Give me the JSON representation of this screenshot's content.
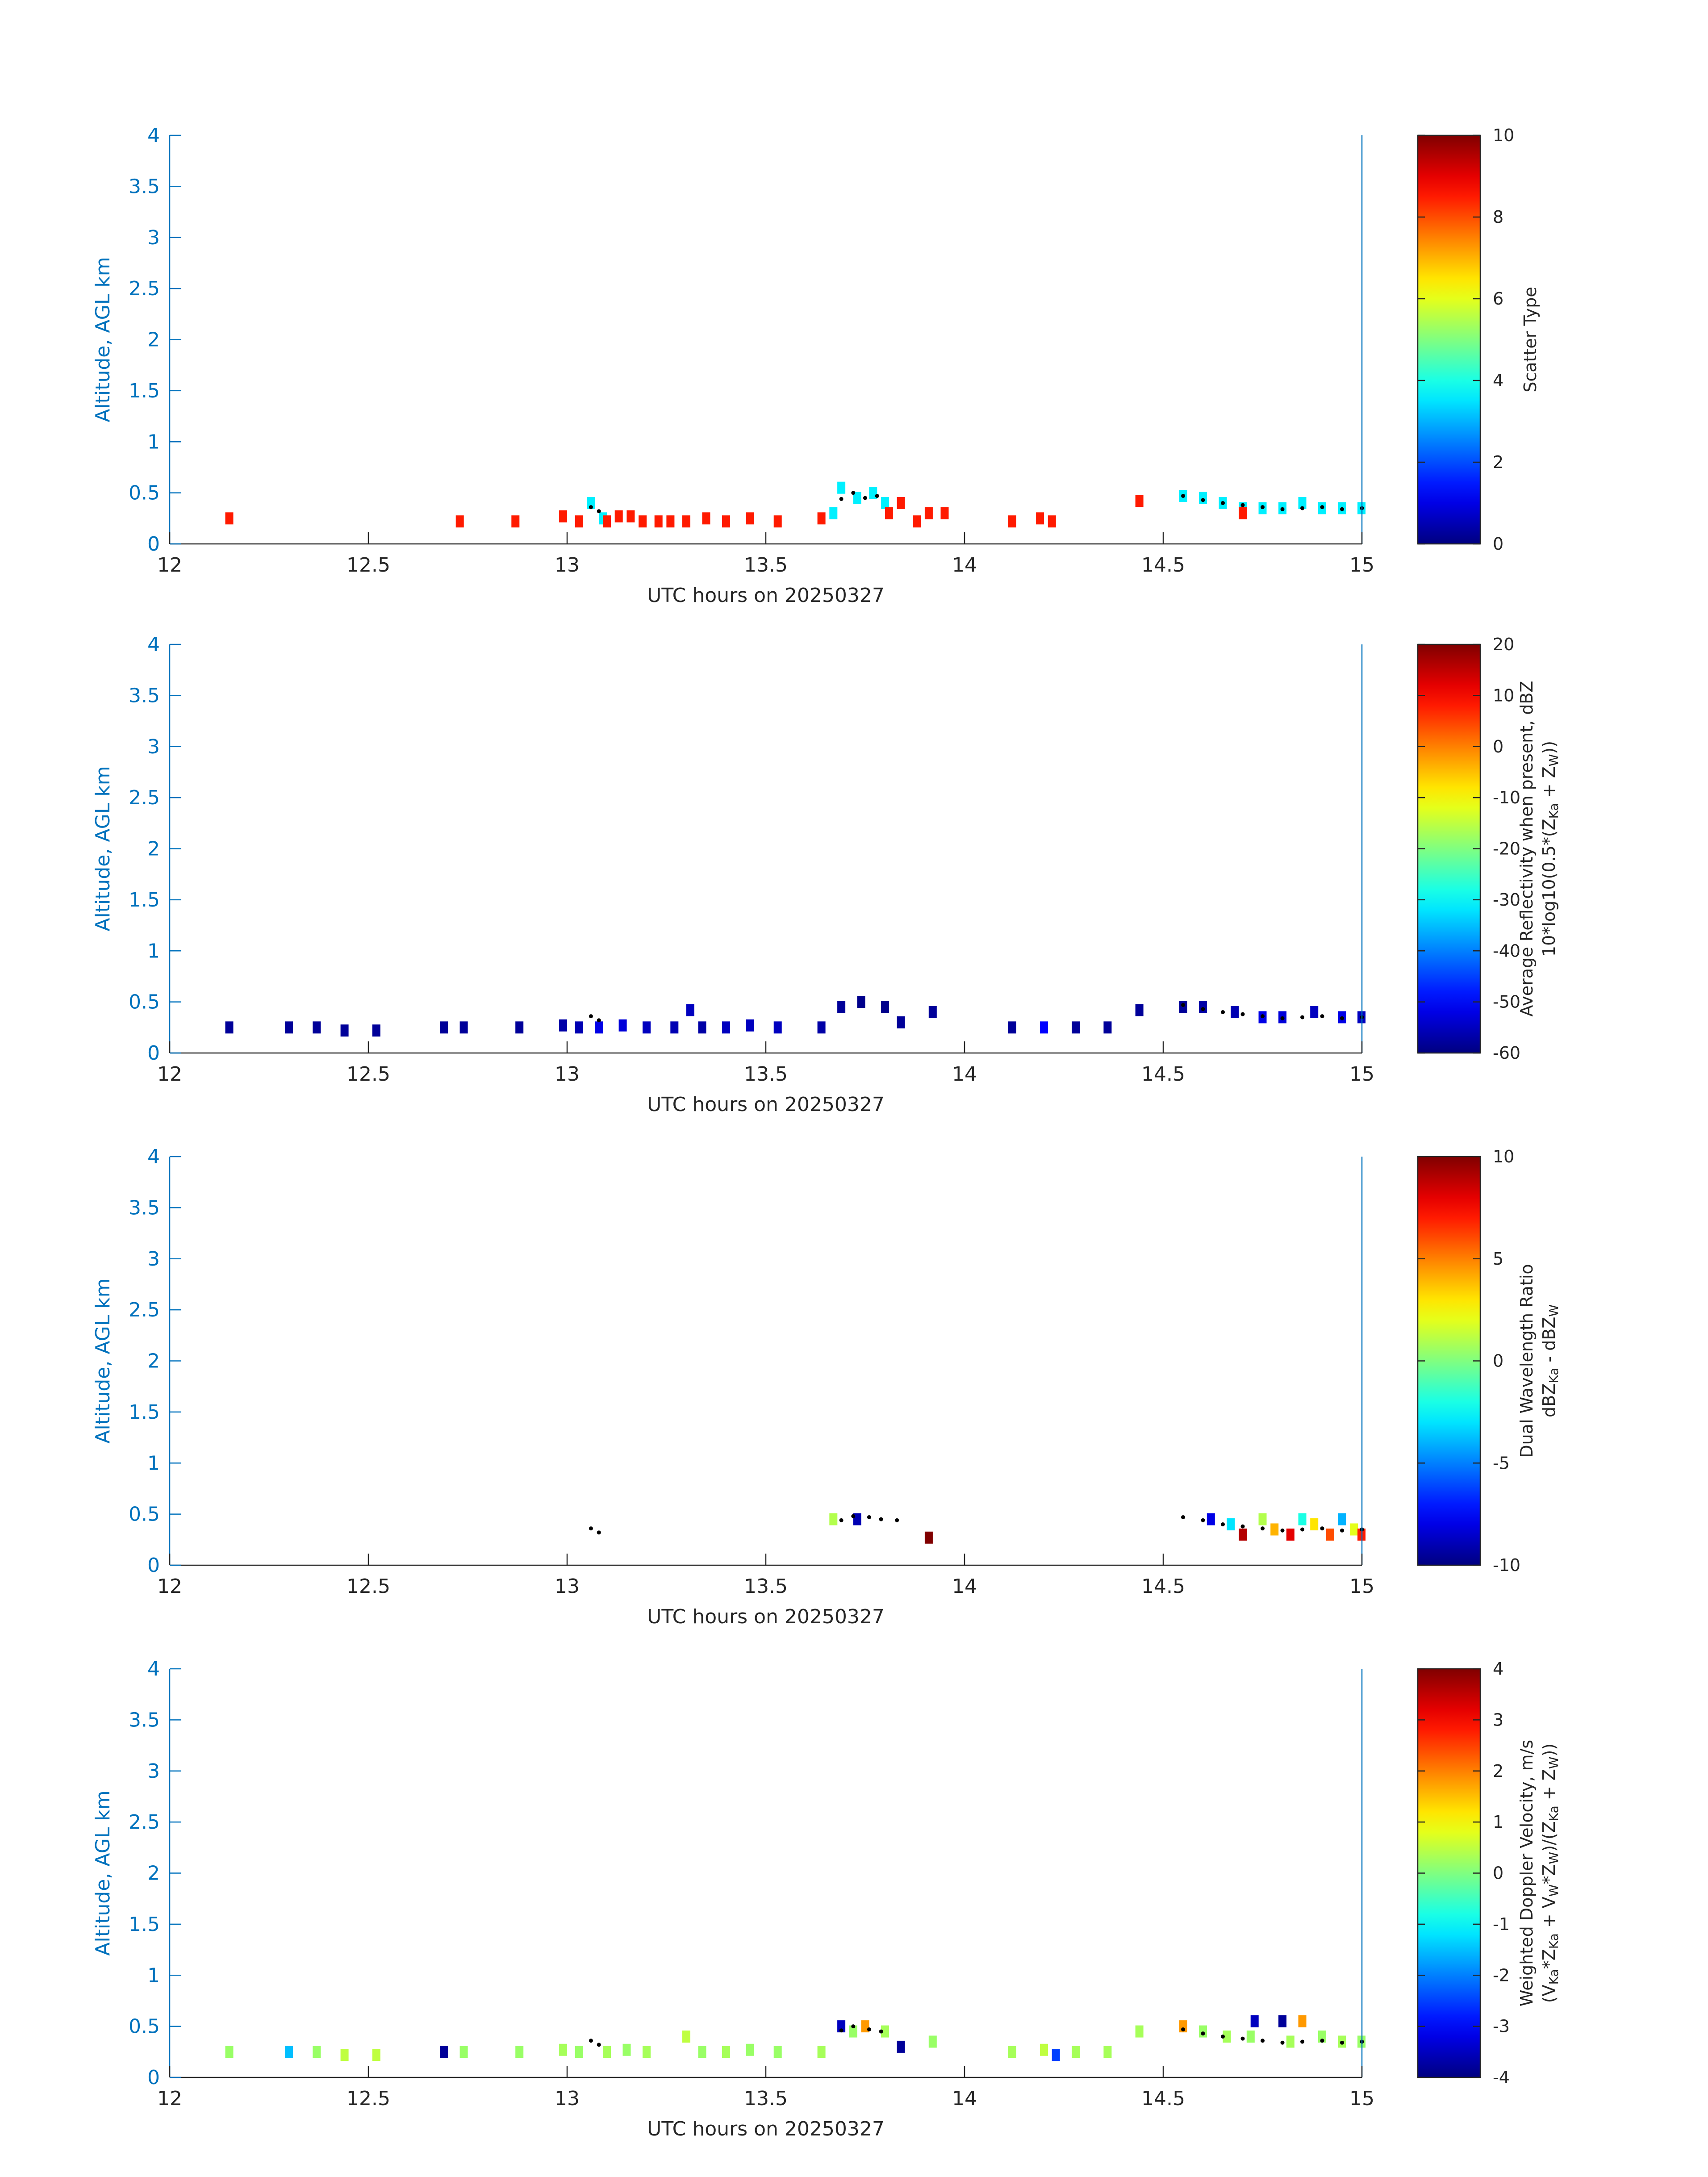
{
  "chart_data": [
    {
      "type": "heatmap",
      "ylabel": "Altitude, AGL km",
      "xlabel": "UTC hours on 20250327",
      "xlim": [
        12,
        15
      ],
      "ylim": [
        0,
        4
      ],
      "xticks": [
        "12",
        "12.5",
        "13",
        "13.5",
        "14",
        "14.5",
        "15"
      ],
      "yticks": [
        "0",
        "0.5",
        "1",
        "1.5",
        "2",
        "2.5",
        "3",
        "3.5",
        "4"
      ],
      "colorbar": {
        "label_lines": [
          "Scatter Type"
        ],
        "range": [
          0,
          10
        ],
        "ticks": [
          "0",
          "2",
          "4",
          "6",
          "8",
          "10"
        ],
        "colormap": "jet"
      },
      "cells": [
        [
          12.15,
          0.25,
          8.5
        ],
        [
          12.73,
          0.22,
          8.5
        ],
        [
          12.87,
          0.22,
          8.5
        ],
        [
          12.99,
          0.27,
          8.5
        ],
        [
          13.03,
          0.22,
          8.5
        ],
        [
          13.06,
          0.4,
          3.6
        ],
        [
          13.09,
          0.25,
          3.6
        ],
        [
          13.1,
          0.22,
          8.5
        ],
        [
          13.13,
          0.27,
          8.5
        ],
        [
          13.16,
          0.27,
          8.5
        ],
        [
          13.19,
          0.22,
          8.5
        ],
        [
          13.23,
          0.22,
          8.5
        ],
        [
          13.26,
          0.22,
          8.5
        ],
        [
          13.3,
          0.22,
          8.5
        ],
        [
          13.35,
          0.25,
          8.5
        ],
        [
          13.4,
          0.22,
          8.5
        ],
        [
          13.46,
          0.25,
          8.5
        ],
        [
          13.53,
          0.22,
          8.5
        ],
        [
          13.64,
          0.25,
          8.5
        ],
        [
          13.67,
          0.3,
          3.6
        ],
        [
          13.69,
          0.55,
          3.6
        ],
        [
          13.73,
          0.45,
          3.6
        ],
        [
          13.77,
          0.5,
          3.6
        ],
        [
          13.8,
          0.4,
          3.6
        ],
        [
          13.81,
          0.3,
          8.5
        ],
        [
          13.84,
          0.4,
          8.5
        ],
        [
          13.88,
          0.22,
          8.5
        ],
        [
          13.91,
          0.3,
          8.5
        ],
        [
          13.95,
          0.3,
          8.5
        ],
        [
          14.12,
          0.22,
          8.5
        ],
        [
          14.19,
          0.25,
          8.5
        ],
        [
          14.22,
          0.22,
          8.5
        ],
        [
          14.44,
          0.42,
          8.5
        ],
        [
          14.55,
          0.47,
          3.6
        ],
        [
          14.6,
          0.45,
          3.6
        ],
        [
          14.65,
          0.4,
          3.6
        ],
        [
          14.7,
          0.35,
          3.6
        ],
        [
          14.7,
          0.3,
          8.5
        ],
        [
          14.75,
          0.35,
          3.6
        ],
        [
          14.8,
          0.35,
          3.6
        ],
        [
          14.85,
          0.4,
          3.6
        ],
        [
          14.9,
          0.35,
          3.6
        ],
        [
          14.95,
          0.35,
          3.6
        ],
        [
          15.0,
          0.35,
          3.6
        ]
      ],
      "dots": [
        [
          13.06,
          0.36
        ],
        [
          13.08,
          0.32
        ],
        [
          13.69,
          0.44
        ],
        [
          13.72,
          0.5
        ],
        [
          13.75,
          0.45
        ],
        [
          13.78,
          0.47
        ],
        [
          14.55,
          0.47
        ],
        [
          14.6,
          0.43
        ],
        [
          14.65,
          0.4
        ],
        [
          14.7,
          0.38
        ],
        [
          14.75,
          0.36
        ],
        [
          14.8,
          0.34
        ],
        [
          14.85,
          0.35
        ],
        [
          14.9,
          0.36
        ],
        [
          14.95,
          0.34
        ],
        [
          15.0,
          0.35
        ]
      ]
    },
    {
      "type": "heatmap",
      "ylabel": "Altitude, AGL km",
      "xlabel": "UTC hours on 20250327",
      "xlim": [
        12,
        15
      ],
      "ylim": [
        0,
        4
      ],
      "xticks": [
        "12",
        "12.5",
        "13",
        "13.5",
        "14",
        "14.5",
        "15"
      ],
      "yticks": [
        "0",
        "0.5",
        "1",
        "1.5",
        "2",
        "2.5",
        "3",
        "3.5",
        "4"
      ],
      "colorbar": {
        "label_lines": [
          "Average Reflectivity when present, dBZ",
          "10*log10(0.5*(Z",
          "Ka",
          " + Z",
          "W",
          "))"
        ],
        "range": [
          -60,
          20
        ],
        "ticks": [
          "-60",
          "-50",
          "-40",
          "-30",
          "-20",
          "-10",
          "0",
          "10",
          "20"
        ],
        "colormap": "jet"
      },
      "cells": [
        [
          12.15,
          0.25,
          -58
        ],
        [
          12.3,
          0.25,
          -58
        ],
        [
          12.37,
          0.25,
          -58
        ],
        [
          12.44,
          0.22,
          -58
        ],
        [
          12.52,
          0.22,
          -58
        ],
        [
          12.69,
          0.25,
          -58
        ],
        [
          12.74,
          0.25,
          -58
        ],
        [
          12.88,
          0.25,
          -58
        ],
        [
          12.99,
          0.27,
          -57
        ],
        [
          13.03,
          0.25,
          -56
        ],
        [
          13.08,
          0.25,
          -52
        ],
        [
          13.14,
          0.27,
          -53
        ],
        [
          13.2,
          0.25,
          -55
        ],
        [
          13.27,
          0.25,
          -56
        ],
        [
          13.31,
          0.42,
          -55
        ],
        [
          13.34,
          0.25,
          -57
        ],
        [
          13.4,
          0.25,
          -55
        ],
        [
          13.46,
          0.27,
          -55
        ],
        [
          13.53,
          0.25,
          -55
        ],
        [
          13.64,
          0.25,
          -57
        ],
        [
          13.69,
          0.45,
          -58
        ],
        [
          13.74,
          0.5,
          -59
        ],
        [
          13.8,
          0.45,
          -59
        ],
        [
          13.84,
          0.3,
          -58
        ],
        [
          13.92,
          0.4,
          -58
        ],
        [
          14.12,
          0.25,
          -58
        ],
        [
          14.2,
          0.25,
          -50
        ],
        [
          14.28,
          0.25,
          -58
        ],
        [
          14.36,
          0.25,
          -58
        ],
        [
          14.44,
          0.42,
          -58
        ],
        [
          14.55,
          0.45,
          -58
        ],
        [
          14.6,
          0.45,
          -57
        ],
        [
          14.68,
          0.4,
          -56
        ],
        [
          14.75,
          0.35,
          -52
        ],
        [
          14.8,
          0.35,
          -53
        ],
        [
          14.88,
          0.4,
          -55
        ],
        [
          14.95,
          0.35,
          -52
        ],
        [
          15.0,
          0.35,
          -55
        ]
      ],
      "dots": [
        [
          13.06,
          0.36
        ],
        [
          13.08,
          0.32
        ],
        [
          14.55,
          0.47
        ],
        [
          14.6,
          0.43
        ],
        [
          14.65,
          0.4
        ],
        [
          14.7,
          0.38
        ],
        [
          14.75,
          0.36
        ],
        [
          14.8,
          0.34
        ],
        [
          14.85,
          0.35
        ],
        [
          14.9,
          0.36
        ],
        [
          14.95,
          0.34
        ],
        [
          15.0,
          0.35
        ]
      ]
    },
    {
      "type": "heatmap",
      "ylabel": "Altitude, AGL km",
      "xlabel": "UTC hours on 20250327",
      "xlim": [
        12,
        15
      ],
      "ylim": [
        0,
        4
      ],
      "xticks": [
        "12",
        "12.5",
        "13",
        "13.5",
        "14",
        "14.5",
        "15"
      ],
      "yticks": [
        "0",
        "0.5",
        "1",
        "1.5",
        "2",
        "2.5",
        "3",
        "3.5",
        "4"
      ],
      "colorbar": {
        "label_lines": [
          "Dual Wavelength Ratio",
          "dBZ",
          "Ka",
          " - dBZ",
          "W"
        ],
        "range": [
          -10,
          10
        ],
        "ticks": [
          "-10",
          "-5",
          "0",
          "5",
          "10"
        ],
        "colormap": "jet"
      },
      "cells": [
        [
          13.67,
          0.45,
          1
        ],
        [
          13.73,
          0.45,
          -9
        ],
        [
          13.91,
          0.27,
          10
        ],
        [
          14.62,
          0.45,
          -8
        ],
        [
          14.67,
          0.4,
          -3
        ],
        [
          14.7,
          0.3,
          9
        ],
        [
          14.75,
          0.45,
          1
        ],
        [
          14.78,
          0.35,
          4
        ],
        [
          14.82,
          0.3,
          8
        ],
        [
          14.85,
          0.45,
          -2
        ],
        [
          14.88,
          0.4,
          3
        ],
        [
          14.92,
          0.3,
          6
        ],
        [
          14.95,
          0.45,
          -4
        ],
        [
          14.98,
          0.35,
          2
        ],
        [
          15.0,
          0.3,
          7
        ]
      ],
      "dots": [
        [
          13.06,
          0.36
        ],
        [
          13.08,
          0.32
        ],
        [
          13.69,
          0.44
        ],
        [
          13.72,
          0.48
        ],
        [
          13.76,
          0.47
        ],
        [
          13.79,
          0.45
        ],
        [
          13.83,
          0.44
        ],
        [
          14.55,
          0.47
        ],
        [
          14.6,
          0.44
        ],
        [
          14.65,
          0.4
        ],
        [
          14.7,
          0.38
        ],
        [
          14.75,
          0.36
        ],
        [
          14.8,
          0.34
        ],
        [
          14.85,
          0.35
        ],
        [
          14.9,
          0.36
        ],
        [
          14.95,
          0.34
        ],
        [
          15.0,
          0.35
        ]
      ]
    },
    {
      "type": "heatmap",
      "ylabel": "Altitude, AGL km",
      "xlabel": "UTC hours on 20250327",
      "xlim": [
        12,
        15
      ],
      "ylim": [
        0,
        4
      ],
      "xticks": [
        "12",
        "12.5",
        "13",
        "13.5",
        "14",
        "14.5",
        "15"
      ],
      "yticks": [
        "0",
        "0.5",
        "1",
        "1.5",
        "2",
        "2.5",
        "3",
        "3.5",
        "4"
      ],
      "colorbar": {
        "label_lines": [
          "Weighted Doppler Velocity, m/s",
          "(V",
          "Ka",
          "*Z",
          "Ka",
          " + V",
          "W",
          "*Z",
          "W",
          ")/(Z",
          "Ka",
          " + Z",
          "W",
          "))"
        ],
        "range": [
          -4,
          4
        ],
        "ticks": [
          "-4",
          "-3",
          "-2",
          "-1",
          "0",
          "1",
          "2",
          "3",
          "4"
        ],
        "colormap": "jet"
      },
      "cells": [
        [
          12.15,
          0.25,
          0.2
        ],
        [
          12.3,
          0.25,
          -1.5
        ],
        [
          12.37,
          0.25,
          0.2
        ],
        [
          12.44,
          0.22,
          0.5
        ],
        [
          12.52,
          0.22,
          0.5
        ],
        [
          12.69,
          0.25,
          -3.8
        ],
        [
          12.74,
          0.25,
          0.2
        ],
        [
          12.88,
          0.25,
          0.2
        ],
        [
          12.99,
          0.27,
          0.3
        ],
        [
          13.03,
          0.25,
          0.2
        ],
        [
          13.1,
          0.25,
          0.3
        ],
        [
          13.15,
          0.27,
          0.2
        ],
        [
          13.2,
          0.25,
          0.3
        ],
        [
          13.3,
          0.4,
          0.5
        ],
        [
          13.34,
          0.25,
          0.2
        ],
        [
          13.4,
          0.25,
          0.3
        ],
        [
          13.46,
          0.27,
          0.2
        ],
        [
          13.53,
          0.25,
          0.2
        ],
        [
          13.64,
          0.25,
          0.3
        ],
        [
          13.69,
          0.5,
          -3.5
        ],
        [
          13.72,
          0.45,
          0.2
        ],
        [
          13.75,
          0.5,
          1.8
        ],
        [
          13.8,
          0.45,
          0.3
        ],
        [
          13.84,
          0.3,
          -3.8
        ],
        [
          13.92,
          0.35,
          0.2
        ],
        [
          14.12,
          0.25,
          0.3
        ],
        [
          14.2,
          0.27,
          0.5
        ],
        [
          14.23,
          0.22,
          -2.5
        ],
        [
          14.28,
          0.25,
          0.3
        ],
        [
          14.36,
          0.25,
          0.3
        ],
        [
          14.44,
          0.45,
          0.3
        ],
        [
          14.55,
          0.5,
          1.8
        ],
        [
          14.6,
          0.45,
          0.2
        ],
        [
          14.66,
          0.4,
          0.3
        ],
        [
          14.72,
          0.4,
          0.2
        ],
        [
          14.73,
          0.55,
          -3.5
        ],
        [
          14.8,
          0.55,
          -3.8
        ],
        [
          14.82,
          0.35,
          0.3
        ],
        [
          14.85,
          0.55,
          1.8
        ],
        [
          14.9,
          0.4,
          0.2
        ],
        [
          14.95,
          0.35,
          0.3
        ],
        [
          15.0,
          0.35,
          0.2
        ]
      ],
      "dots": [
        [
          13.06,
          0.36
        ],
        [
          13.08,
          0.32
        ],
        [
          13.69,
          0.46
        ],
        [
          13.72,
          0.5
        ],
        [
          13.76,
          0.47
        ],
        [
          13.79,
          0.45
        ],
        [
          14.55,
          0.47
        ],
        [
          14.6,
          0.43
        ],
        [
          14.65,
          0.4
        ],
        [
          14.7,
          0.38
        ],
        [
          14.75,
          0.36
        ],
        [
          14.8,
          0.34
        ],
        [
          14.85,
          0.35
        ],
        [
          14.9,
          0.36
        ],
        [
          14.95,
          0.34
        ],
        [
          15.0,
          0.35
        ]
      ]
    }
  ]
}
